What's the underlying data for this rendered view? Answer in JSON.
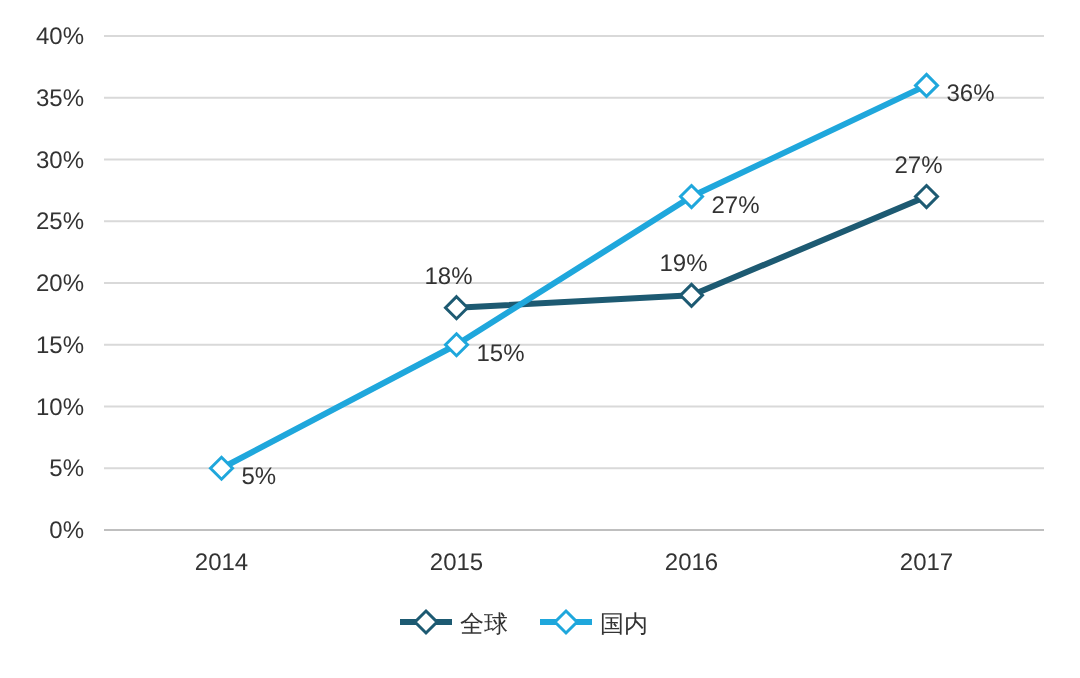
{
  "chart_data": {
    "type": "line",
    "categories": [
      "2014",
      "2015",
      "2016",
      "2017"
    ],
    "series": [
      {
        "name": "全球",
        "color": "#1d5a72",
        "values": [
          null,
          18,
          19,
          27
        ],
        "value_labels": [
          null,
          "18%",
          "19%",
          "27%"
        ]
      },
      {
        "name": "国内",
        "color": "#1fa7dc",
        "values": [
          5,
          15,
          27,
          36
        ],
        "value_labels": [
          "5%",
          "15%",
          "27%",
          "36%"
        ]
      }
    ],
    "ylim": [
      0,
      40
    ],
    "yticks": [
      {
        "value": 0,
        "label": "0%"
      },
      {
        "value": 5,
        "label": "5%"
      },
      {
        "value": 10,
        "label": "10%"
      },
      {
        "value": 15,
        "label": "15%"
      },
      {
        "value": 20,
        "label": "20%"
      },
      {
        "value": 25,
        "label": "25%"
      },
      {
        "value": 30,
        "label": "30%"
      },
      {
        "value": 35,
        "label": "35%"
      },
      {
        "value": 40,
        "label": "40%"
      }
    ],
    "grid": "y",
    "marker": "diamond",
    "legend": "bottom",
    "line_style": "solid"
  }
}
